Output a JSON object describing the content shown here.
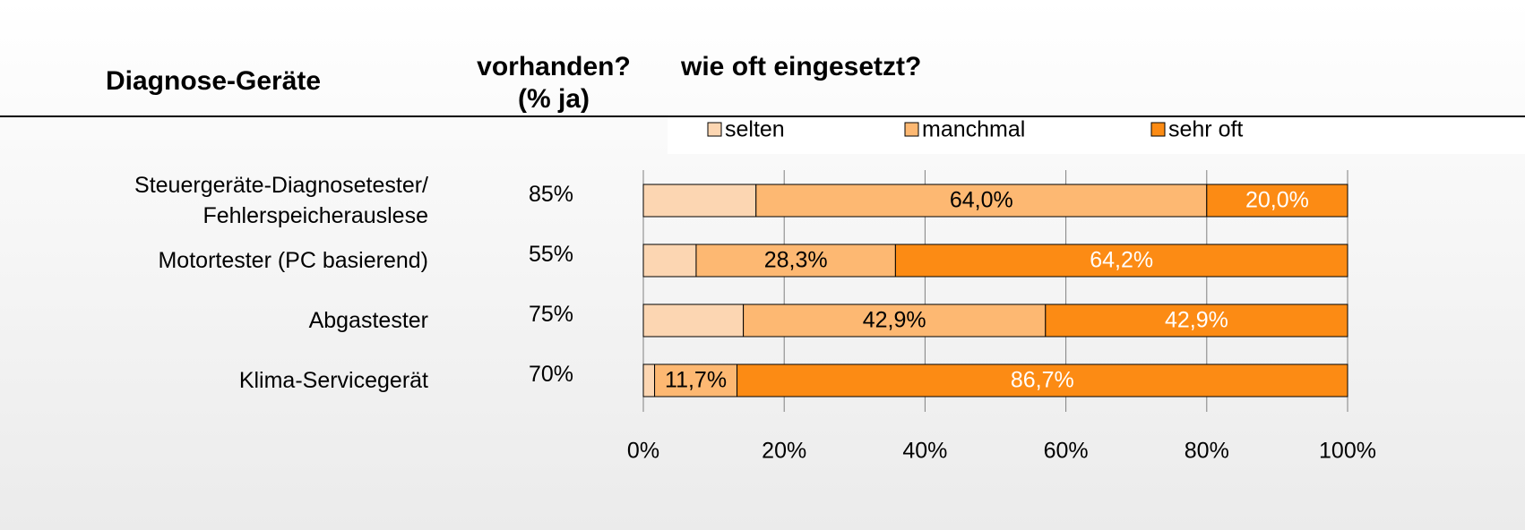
{
  "header": {
    "title": "Diagnose-Geräte",
    "available_lines": [
      "vorhanden?",
      "(% ja)"
    ],
    "usage": "wie oft eingesetzt?"
  },
  "available": {
    "values": [
      85,
      55,
      75,
      70
    ],
    "value_labels": [
      "85%",
      "55%",
      "75%",
      "70%"
    ]
  },
  "chart_data": {
    "type": "stacked-barh",
    "categories": [
      "Steuergeräte-Diagnosetester/\nFehlerspeicherauslese",
      "Motortester (PC basierend)",
      "Abgastester",
      "Klima-Servicegerät"
    ],
    "series": [
      {
        "name": "selten",
        "color": "#fcd6b2",
        "values": [
          16.0,
          7.5,
          14.2,
          1.6
        ]
      },
      {
        "name": "manchmal",
        "color": "#fdb872",
        "label_color": "#000000",
        "values": [
          64.0,
          28.3,
          42.9,
          11.7
        ],
        "value_labels": [
          "64,0%",
          "28,3%",
          "42,9%",
          "11,7%"
        ]
      },
      {
        "name": "sehr oft",
        "color": "#fc8b14",
        "label_color": "#ffffff",
        "values": [
          20.0,
          64.2,
          42.9,
          86.7
        ],
        "value_labels": [
          "20,0%",
          "64,2%",
          "42,9%",
          "86,7%"
        ]
      }
    ],
    "xlim": [
      0,
      100
    ],
    "xticks": [
      {
        "value": 0,
        "label": "0%"
      },
      {
        "value": 20,
        "label": "20%"
      },
      {
        "value": 40,
        "label": "40%"
      },
      {
        "value": 60,
        "label": "60%"
      },
      {
        "value": 80,
        "label": "80%"
      },
      {
        "value": 100,
        "label": "100%"
      }
    ],
    "grid": true,
    "legend": "top"
  }
}
